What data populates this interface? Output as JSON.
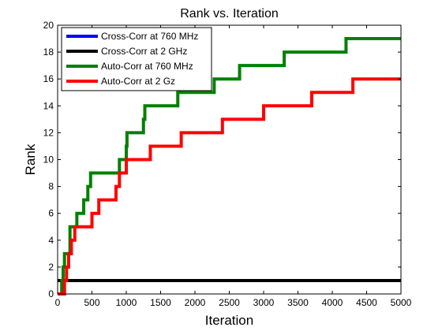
{
  "chart_data": {
    "type": "line",
    "title": "Rank vs. Iteration",
    "xlabel": "Iteration",
    "ylabel": "Rank",
    "xlim": [
      0,
      5000
    ],
    "ylim": [
      0,
      20
    ],
    "xticks": [
      0,
      500,
      1000,
      1500,
      2000,
      2500,
      3000,
      3500,
      4000,
      4500,
      5000
    ],
    "yticks": [
      0,
      2,
      4,
      6,
      8,
      10,
      12,
      14,
      16,
      18,
      20
    ],
    "grid": false,
    "legend_position": "top-left",
    "series": [
      {
        "name": "Cross-Corr at 760 MHz",
        "color": "#0000ff",
        "step": true,
        "x": [
          0,
          5000
        ],
        "y": [
          1,
          1
        ]
      },
      {
        "name": "Cross-Corr at 2 GHz",
        "color": "#000000",
        "step": true,
        "x": [
          0,
          5000
        ],
        "y": [
          1,
          1
        ]
      },
      {
        "name": "Auto-Corr at 760 MHz",
        "color": "#008000",
        "step": true,
        "x": [
          0,
          60,
          80,
          100,
          130,
          180,
          200,
          280,
          380,
          400,
          440,
          480,
          850,
          900,
          1000,
          1010,
          1250,
          1270,
          1750,
          1780,
          2280,
          2650,
          3300,
          4200,
          5000
        ],
        "y": [
          0,
          1,
          2,
          3,
          3,
          5,
          5,
          6,
          7,
          7,
          8,
          9,
          9,
          10,
          11,
          12,
          13,
          14,
          15,
          15,
          16,
          17,
          18,
          19,
          19
        ]
      },
      {
        "name": "Auto-Corr at 2 Gz",
        "color": "#ff0000",
        "step": true,
        "x": [
          0,
          100,
          130,
          160,
          200,
          220,
          250,
          350,
          500,
          600,
          850,
          880,
          900,
          960,
          1000,
          1350,
          1800,
          2400,
          3000,
          3700,
          4300,
          5000
        ],
        "y": [
          0,
          1,
          2,
          3,
          4,
          4,
          5,
          5,
          6,
          7,
          8,
          8,
          9,
          9,
          10,
          11,
          12,
          13,
          14,
          15,
          16,
          16
        ]
      }
    ]
  }
}
